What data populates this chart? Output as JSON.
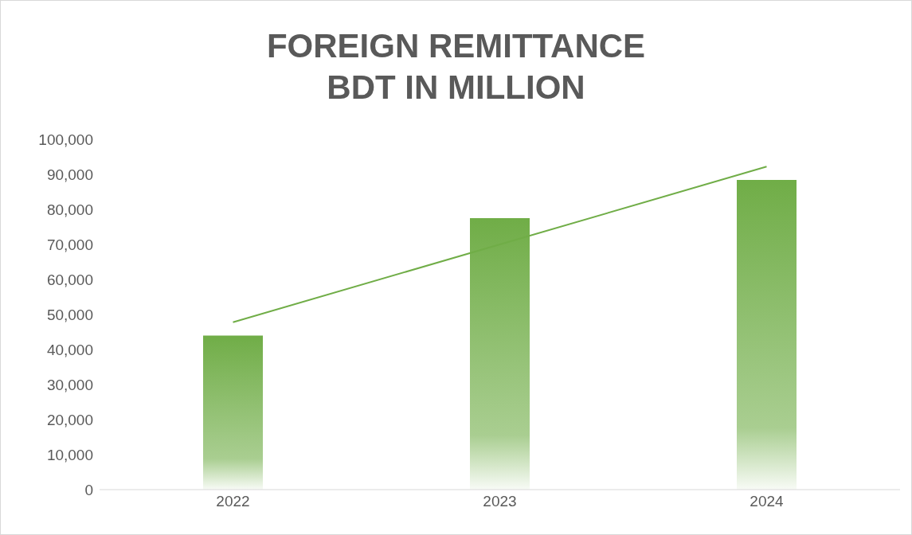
{
  "chart_data": {
    "type": "bar",
    "title": "FOREIGN REMITTANCE",
    "subtitle": "BDT IN MILLION",
    "categories": [
      "2022",
      "2023",
      "2024"
    ],
    "series": [
      {
        "color": "#70ad47",
        "values": [
          44000,
          77500,
          88400
        ]
      },
      {
        "type": "line",
        "color": "#70ad47",
        "values": [
          47800,
          70000,
          92200
        ]
      }
    ],
    "ylim": [
      0,
      100000
    ],
    "yticks": [
      0,
      {
        "value": 10000,
        "label": "10,000"
      },
      {
        "value": 20000,
        "label": "20,000"
      },
      {
        "value": 30000,
        "label": "30,000"
      },
      {
        "value": 40000,
        "label": "40,000"
      },
      {
        "value": 50000,
        "label": "50,000"
      },
      {
        "value": 60000,
        "label": "60,000"
      },
      {
        "value": 70000,
        "label": "70,000"
      },
      {
        "value": 80000,
        "label": "80,000"
      },
      {
        "value": 90000,
        "label": "90,000"
      },
      {
        "value": 100000,
        "label": "100,000"
      }
    ]
  }
}
